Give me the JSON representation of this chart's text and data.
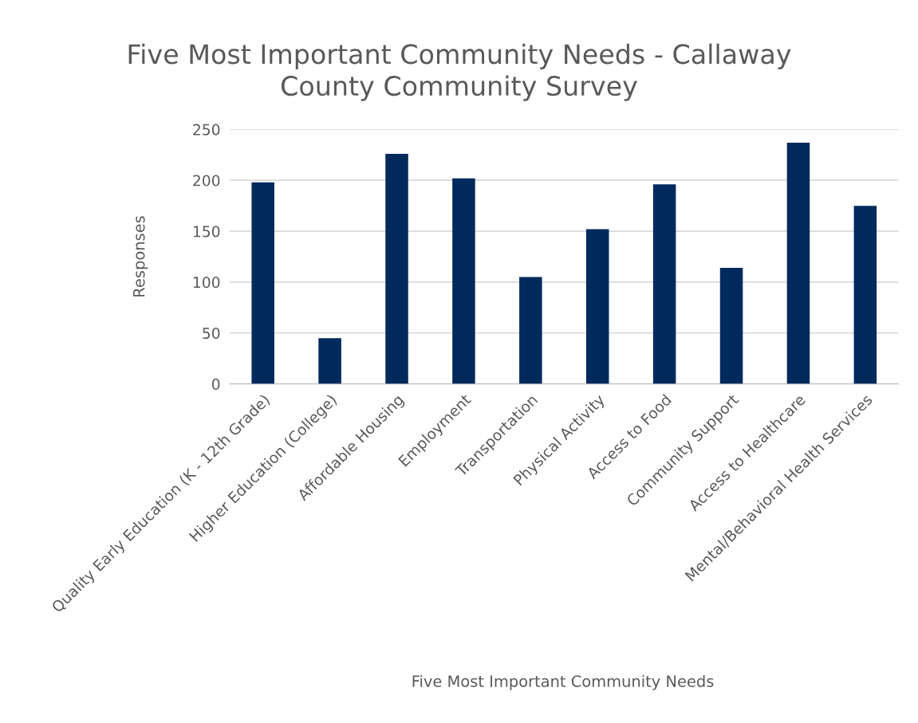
{
  "chart_data": {
    "type": "bar",
    "title": "Five Most Important Community Needs - Callaway\nCounty Community Survey",
    "xlabel": "Five Most Important Community Needs",
    "ylabel": "Responses",
    "categories": [
      "Quality Early Education (K - 12th Grade)",
      "Higher Education (College)",
      "Affordable Housing",
      "Employment",
      "Transportation",
      "Physical Activity",
      "Access to Food",
      "Community Support",
      "Access to Healthcare",
      "Mental/Behavioral Health Services"
    ],
    "values": [
      198,
      45,
      226,
      202,
      105,
      152,
      196,
      114,
      237,
      175
    ],
    "color": "#002a5c",
    "ylim": [
      0,
      250
    ],
    "yticks": [
      0,
      50,
      100,
      150,
      200,
      250
    ],
    "grid": "y"
  }
}
